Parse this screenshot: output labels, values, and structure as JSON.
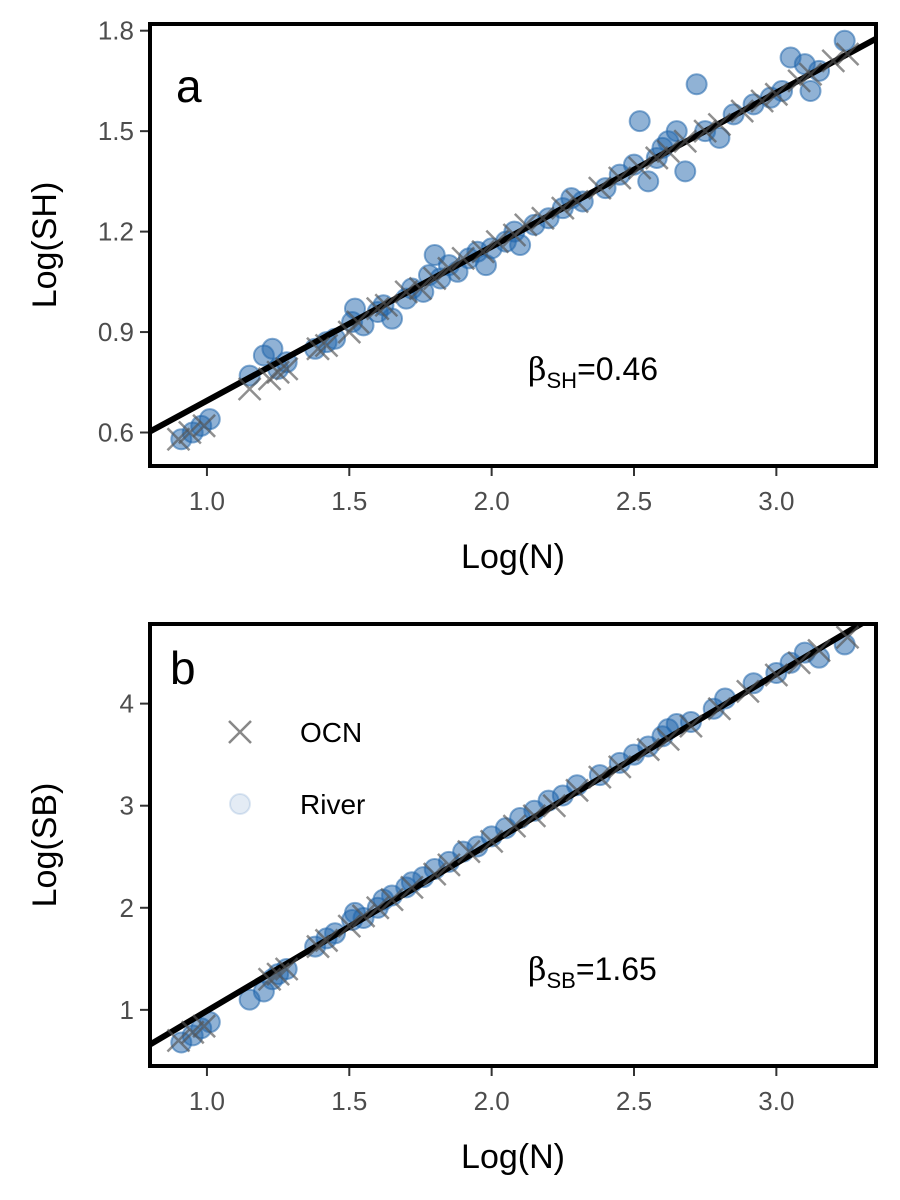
{
  "chart_data": [
    {
      "type": "scatter",
      "panel_label": "a",
      "xlabel": "Log(N)",
      "ylabel": "Log(SH)",
      "xlim": [
        0.8,
        3.35
      ],
      "ylim": [
        0.5,
        1.82
      ],
      "x_ticks": [
        1.0,
        1.5,
        2.0,
        2.5,
        3.0
      ],
      "x_tick_labels": [
        "1.0",
        "1.5",
        "2.0",
        "2.5",
        "3.0"
      ],
      "y_ticks": [
        0.6,
        0.9,
        1.2,
        1.5,
        1.8
      ],
      "y_tick_labels": [
        "0.6",
        "0.9",
        "1.2",
        "1.5",
        "1.8"
      ],
      "annotation": {
        "symbol": "β",
        "subscript": "SH",
        "value_text": "=0.46",
        "placement": "lower-right"
      },
      "fit_line": {
        "slope": 0.46,
        "intercept": 0.235,
        "x_range": [
          0.8,
          3.35
        ]
      },
      "series": [
        {
          "name": "River",
          "marker": "circle",
          "color": "#2166ac",
          "points": [
            [
              0.91,
              0.58
            ],
            [
              0.95,
              0.6
            ],
            [
              0.98,
              0.62
            ],
            [
              1.01,
              0.64
            ],
            [
              1.15,
              0.77
            ],
            [
              1.2,
              0.83
            ],
            [
              1.23,
              0.85
            ],
            [
              1.25,
              0.79
            ],
            [
              1.28,
              0.81
            ],
            [
              1.38,
              0.85
            ],
            [
              1.42,
              0.87
            ],
            [
              1.45,
              0.88
            ],
            [
              1.51,
              0.93
            ],
            [
              1.52,
              0.97
            ],
            [
              1.55,
              0.92
            ],
            [
              1.6,
              0.96
            ],
            [
              1.62,
              0.98
            ],
            [
              1.65,
              0.94
            ],
            [
              1.7,
              1.0
            ],
            [
              1.72,
              1.03
            ],
            [
              1.76,
              1.02
            ],
            [
              1.78,
              1.07
            ],
            [
              1.8,
              1.13
            ],
            [
              1.82,
              1.06
            ],
            [
              1.85,
              1.1
            ],
            [
              1.88,
              1.08
            ],
            [
              1.92,
              1.12
            ],
            [
              1.95,
              1.14
            ],
            [
              1.98,
              1.1
            ],
            [
              2.0,
              1.15
            ],
            [
              2.05,
              1.17
            ],
            [
              2.08,
              1.2
            ],
            [
              2.1,
              1.16
            ],
            [
              2.15,
              1.22
            ],
            [
              2.2,
              1.24
            ],
            [
              2.25,
              1.27
            ],
            [
              2.28,
              1.3
            ],
            [
              2.32,
              1.29
            ],
            [
              2.4,
              1.33
            ],
            [
              2.45,
              1.37
            ],
            [
              2.5,
              1.4
            ],
            [
              2.52,
              1.53
            ],
            [
              2.55,
              1.35
            ],
            [
              2.58,
              1.42
            ],
            [
              2.6,
              1.45
            ],
            [
              2.62,
              1.47
            ],
            [
              2.65,
              1.5
            ],
            [
              2.68,
              1.38
            ],
            [
              2.72,
              1.64
            ],
            [
              2.75,
              1.5
            ],
            [
              2.8,
              1.48
            ],
            [
              2.85,
              1.55
            ],
            [
              2.92,
              1.58
            ],
            [
              2.98,
              1.6
            ],
            [
              3.02,
              1.62
            ],
            [
              3.05,
              1.72
            ],
            [
              3.1,
              1.7
            ],
            [
              3.12,
              1.62
            ],
            [
              3.15,
              1.68
            ],
            [
              3.24,
              1.77
            ]
          ]
        },
        {
          "name": "OCN",
          "marker": "cross",
          "color": "#555555",
          "points": [
            [
              0.9,
              0.58
            ],
            [
              0.94,
              0.6
            ],
            [
              0.99,
              0.62
            ],
            [
              1.15,
              0.73
            ],
            [
              1.22,
              0.76
            ],
            [
              1.25,
              0.78
            ],
            [
              1.28,
              0.79
            ],
            [
              1.39,
              0.85
            ],
            [
              1.42,
              0.86
            ],
            [
              1.5,
              0.9
            ],
            [
              1.53,
              0.93
            ],
            [
              1.6,
              0.97
            ],
            [
              1.63,
              0.98
            ],
            [
              1.7,
              1.02
            ],
            [
              1.75,
              1.03
            ],
            [
              1.8,
              1.06
            ],
            [
              1.85,
              1.09
            ],
            [
              1.9,
              1.12
            ],
            [
              1.97,
              1.14
            ],
            [
              2.02,
              1.17
            ],
            [
              2.08,
              1.19
            ],
            [
              2.12,
              1.22
            ],
            [
              2.18,
              1.24
            ],
            [
              2.25,
              1.27
            ],
            [
              2.3,
              1.29
            ],
            [
              2.38,
              1.33
            ],
            [
              2.45,
              1.36
            ],
            [
              2.52,
              1.39
            ],
            [
              2.58,
              1.42
            ],
            [
              2.62,
              1.44
            ],
            [
              2.68,
              1.47
            ],
            [
              2.75,
              1.5
            ],
            [
              2.8,
              1.52
            ],
            [
              2.88,
              1.56
            ],
            [
              2.95,
              1.59
            ],
            [
              3.0,
              1.61
            ],
            [
              3.08,
              1.65
            ],
            [
              3.12,
              1.67
            ],
            [
              3.2,
              1.71
            ],
            [
              3.25,
              1.73
            ]
          ]
        }
      ]
    },
    {
      "type": "scatter",
      "panel_label": "b",
      "xlabel": "Log(N)",
      "ylabel": "Log(SB)",
      "xlim": [
        0.8,
        3.35
      ],
      "ylim": [
        0.45,
        4.78
      ],
      "x_ticks": [
        1.0,
        1.5,
        2.0,
        2.5,
        3.0
      ],
      "x_tick_labels": [
        "1.0",
        "1.5",
        "2.0",
        "2.5",
        "3.0"
      ],
      "y_ticks": [
        1,
        2,
        3,
        4
      ],
      "y_tick_labels": [
        "1",
        "2",
        "3",
        "4"
      ],
      "annotation": {
        "symbol": "β",
        "subscript": "SB",
        "value_text": "=1.65",
        "placement": "lower-right"
      },
      "fit_line": {
        "slope": 1.65,
        "intercept": -0.66,
        "x_range": [
          0.8,
          3.35
        ]
      },
      "legend": {
        "placement": "top-left",
        "entries": [
          {
            "label": "OCN",
            "marker": "cross"
          },
          {
            "label": "River",
            "marker": "circle"
          }
        ]
      },
      "series": [
        {
          "name": "River",
          "marker": "circle",
          "color": "#2166ac",
          "points": [
            [
              0.91,
              0.68
            ],
            [
              0.95,
              0.75
            ],
            [
              0.98,
              0.82
            ],
            [
              1.01,
              0.88
            ],
            [
              1.15,
              1.1
            ],
            [
              1.2,
              1.18
            ],
            [
              1.23,
              1.3
            ],
            [
              1.25,
              1.35
            ],
            [
              1.28,
              1.4
            ],
            [
              1.38,
              1.62
            ],
            [
              1.42,
              1.7
            ],
            [
              1.45,
              1.75
            ],
            [
              1.51,
              1.88
            ],
            [
              1.52,
              1.95
            ],
            [
              1.55,
              1.9
            ],
            [
              1.6,
              2.0
            ],
            [
              1.62,
              2.08
            ],
            [
              1.65,
              2.12
            ],
            [
              1.7,
              2.2
            ],
            [
              1.72,
              2.25
            ],
            [
              1.76,
              2.3
            ],
            [
              1.8,
              2.38
            ],
            [
              1.85,
              2.45
            ],
            [
              1.9,
              2.55
            ],
            [
              1.95,
              2.6
            ],
            [
              2.0,
              2.7
            ],
            [
              2.05,
              2.78
            ],
            [
              2.1,
              2.88
            ],
            [
              2.15,
              2.95
            ],
            [
              2.2,
              3.05
            ],
            [
              2.25,
              3.1
            ],
            [
              2.3,
              3.2
            ],
            [
              2.38,
              3.3
            ],
            [
              2.45,
              3.42
            ],
            [
              2.5,
              3.5
            ],
            [
              2.55,
              3.58
            ],
            [
              2.6,
              3.68
            ],
            [
              2.62,
              3.75
            ],
            [
              2.65,
              3.8
            ],
            [
              2.7,
              3.82
            ],
            [
              2.78,
              3.95
            ],
            [
              2.82,
              4.05
            ],
            [
              2.92,
              4.2
            ],
            [
              3.0,
              4.3
            ],
            [
              3.05,
              4.4
            ],
            [
              3.1,
              4.5
            ],
            [
              3.15,
              4.45
            ],
            [
              3.24,
              4.58
            ]
          ]
        },
        {
          "name": "OCN",
          "marker": "cross",
          "color": "#555555",
          "points": [
            [
              0.9,
              0.7
            ],
            [
              0.95,
              0.78
            ],
            [
              0.99,
              0.84
            ],
            [
              1.22,
              1.3
            ],
            [
              1.25,
              1.35
            ],
            [
              1.28,
              1.4
            ],
            [
              1.39,
              1.62
            ],
            [
              1.42,
              1.68
            ],
            [
              1.5,
              1.82
            ],
            [
              1.55,
              1.92
            ],
            [
              1.6,
              2.0
            ],
            [
              1.65,
              2.08
            ],
            [
              1.72,
              2.2
            ],
            [
              1.8,
              2.33
            ],
            [
              1.85,
              2.42
            ],
            [
              1.92,
              2.55
            ],
            [
              2.0,
              2.65
            ],
            [
              2.08,
              2.8
            ],
            [
              2.15,
              2.9
            ],
            [
              2.22,
              3.0
            ],
            [
              2.3,
              3.15
            ],
            [
              2.38,
              3.28
            ],
            [
              2.45,
              3.38
            ],
            [
              2.55,
              3.55
            ],
            [
              2.62,
              3.65
            ],
            [
              2.7,
              3.78
            ],
            [
              2.8,
              3.95
            ],
            [
              2.9,
              4.12
            ],
            [
              3.0,
              4.28
            ],
            [
              3.08,
              4.4
            ],
            [
              3.15,
              4.52
            ],
            [
              3.25,
              4.65
            ]
          ]
        }
      ]
    }
  ]
}
